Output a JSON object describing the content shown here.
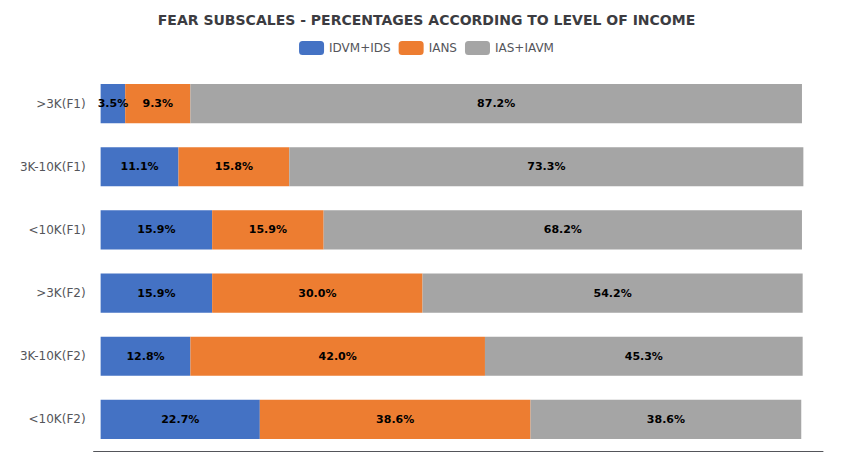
{
  "chart_data": {
    "type": "bar",
    "title": "FEAR SUBSCALES - PERCENTAGES ACCORDING TO LEVEL OF INCOME",
    "orientation": "horizontal",
    "stacked": true,
    "data_labels": true,
    "tick_labels": "y",
    "grid": false,
    "legend": "top",
    "categories": [
      ">3K(F1)",
      "3K-10K(F1)",
      "<10K(F1)",
      ">3K(F2)",
      "3K-10K(F2)",
      "<10K(F2)"
    ],
    "xlim": [
      -1,
      103
    ],
    "series": [
      {
        "name": "IDVM+IDS",
        "color": "#4472C4",
        "values": [
          3.5,
          11.1,
          15.9,
          15.9,
          12.8,
          22.7
        ],
        "value_labels": [
          "3.5%",
          "11.1%",
          "15.9%",
          "15.9%",
          "12.8%",
          "22.7%"
        ]
      },
      {
        "name": "IANS",
        "color": "#ED7D31",
        "values": [
          9.3,
          15.8,
          15.9,
          30.0,
          42.0,
          38.6
        ],
        "value_labels": [
          "9.3%",
          "15.8%",
          "15.9%",
          "30.0%",
          "42.0%",
          "38.6%"
        ]
      },
      {
        "name": "IAS+IAVM",
        "color": "#A5A5A5",
        "values": [
          87.2,
          73.3,
          68.2,
          54.2,
          45.3,
          38.6
        ],
        "value_labels": [
          "87.2%",
          "73.3%",
          "68.2%",
          "54.2%",
          "45.3%",
          "38.6%"
        ]
      }
    ]
  }
}
